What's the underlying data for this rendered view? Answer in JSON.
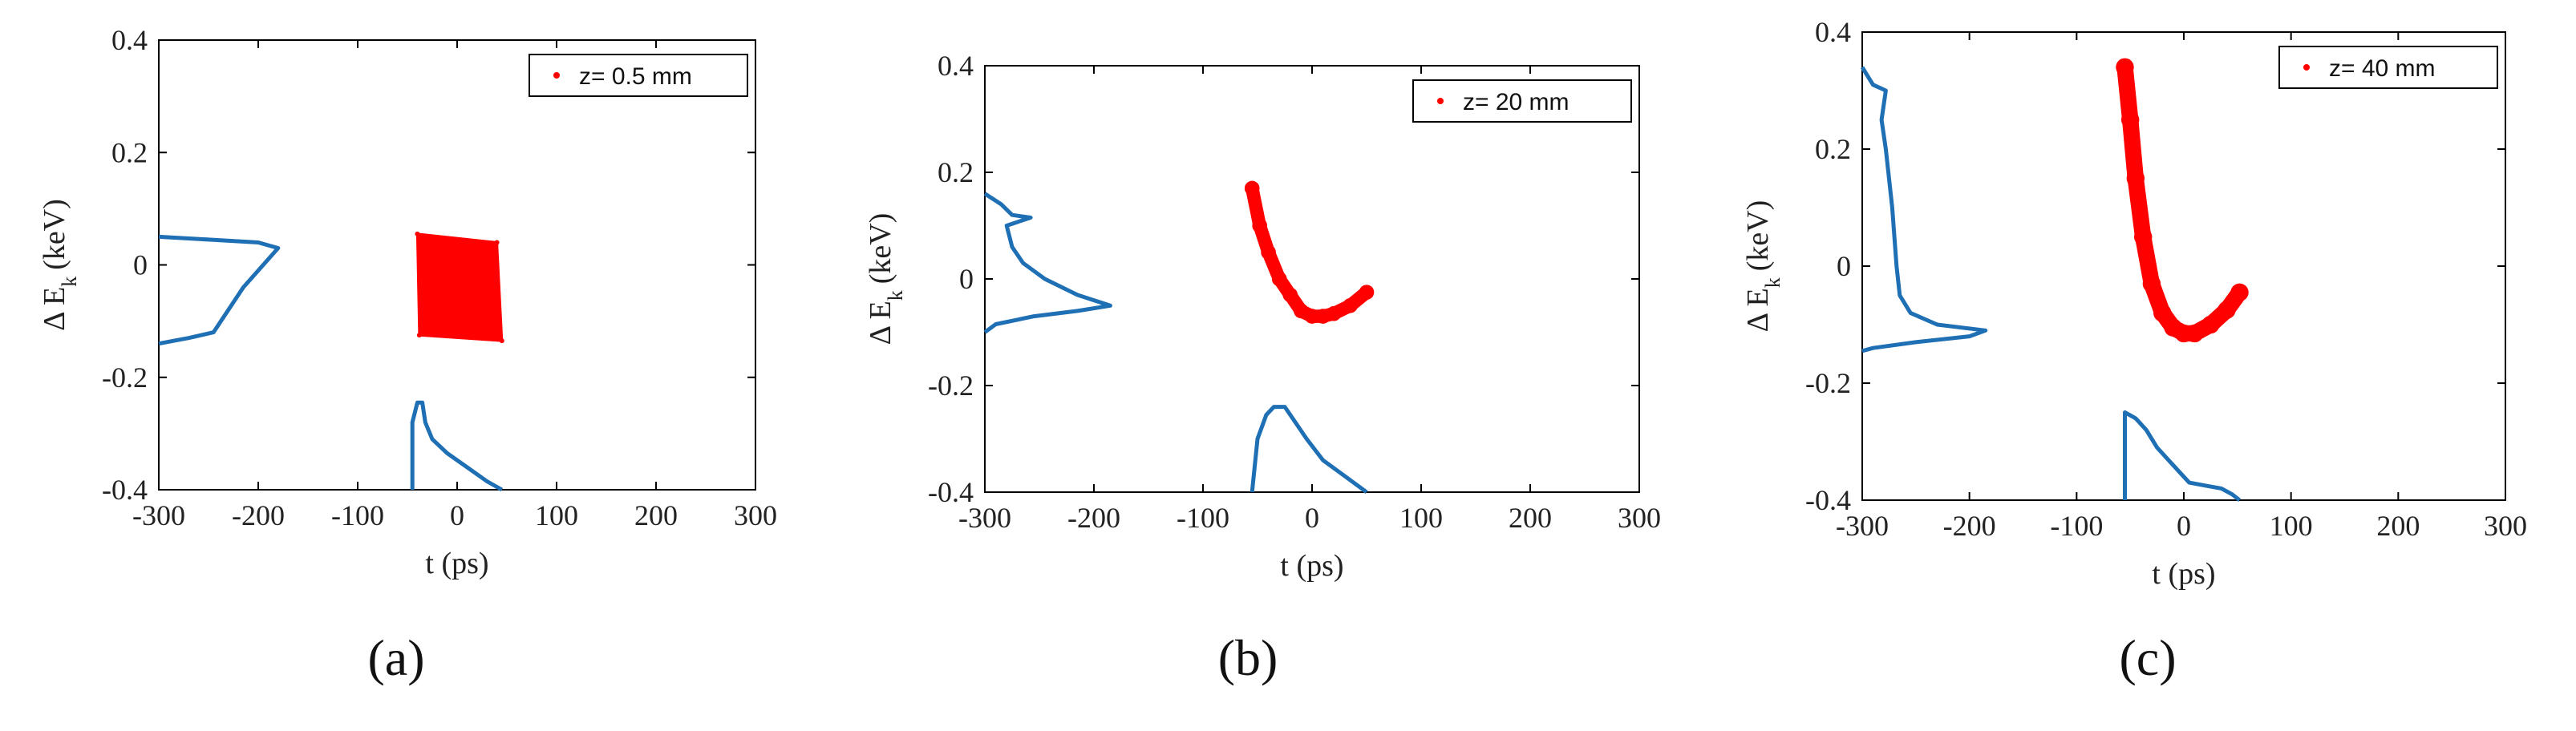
{
  "colors": {
    "scatter": "#ff0000",
    "histogram": "#1f6fb4",
    "axis": "#000000"
  },
  "chart_data": [
    {
      "type": "scatter",
      "caption": "(a)",
      "legend": "z= 0.5 mm",
      "legend_position": "top-right",
      "xlabel": "t (ps)",
      "ylabel_main": "Δ E",
      "ylabel_sub": "k",
      "ylabel_unit": "(keV)",
      "xlim": [
        -300,
        300
      ],
      "ylim": [
        -0.4,
        0.4
      ],
      "xticks": [
        "-300",
        "-200",
        "-100",
        "0",
        "100",
        "200",
        "300"
      ],
      "yticks": [
        "-0.4",
        "-0.2",
        "0",
        "0.2",
        "0.4"
      ],
      "scatter_shape": "block",
      "scatter_polygon": [
        [
          -40,
          0.055
        ],
        [
          40,
          0.04
        ],
        [
          45,
          -0.135
        ],
        [
          -38,
          -0.125
        ]
      ],
      "histogram_t": [
        [
          -45,
          -0.4
        ],
        [
          -45,
          -0.28
        ],
        [
          -40,
          -0.245
        ],
        [
          -35,
          -0.245
        ],
        [
          -32,
          -0.28
        ],
        [
          -25,
          -0.31
        ],
        [
          -10,
          -0.335
        ],
        [
          10,
          -0.36
        ],
        [
          30,
          -0.385
        ],
        [
          45,
          -0.4
        ]
      ],
      "histogram_e": [
        [
          -300,
          0.05
        ],
        [
          -250,
          0.045
        ],
        [
          -200,
          0.04
        ],
        [
          -180,
          0.03
        ],
        [
          -190,
          0.01
        ],
        [
          -215,
          -0.04
        ],
        [
          -245,
          -0.12
        ],
        [
          -270,
          -0.13
        ],
        [
          -300,
          -0.14
        ]
      ]
    },
    {
      "type": "scatter",
      "caption": "(b)",
      "legend": "z= 20 mm",
      "legend_position": "top-right",
      "xlabel": "t (ps)",
      "ylabel_main": "Δ E",
      "ylabel_sub": "k",
      "ylabel_unit": "(keV)",
      "xlim": [
        -300,
        300
      ],
      "ylim": [
        -0.4,
        0.4
      ],
      "xticks": [
        "-300",
        "-200",
        "-100",
        "0",
        "100",
        "200",
        "300"
      ],
      "yticks": [
        "-0.4",
        "-0.2",
        "0",
        "0.2",
        "0.4"
      ],
      "scatter_shape": "band",
      "scatter_curve": [
        [
          -55,
          0.17
        ],
        [
          -48,
          0.1
        ],
        [
          -40,
          0.05
        ],
        [
          -30,
          0.0
        ],
        [
          -20,
          -0.03
        ],
        [
          -10,
          -0.06
        ],
        [
          0,
          -0.07
        ],
        [
          10,
          -0.07
        ],
        [
          20,
          -0.065
        ],
        [
          35,
          -0.05
        ],
        [
          50,
          -0.025
        ]
      ],
      "scatter_spread": 0.025,
      "histogram_t": [
        [
          -55,
          -0.4
        ],
        [
          -50,
          -0.3
        ],
        [
          -42,
          -0.255
        ],
        [
          -35,
          -0.24
        ],
        [
          -25,
          -0.24
        ],
        [
          -15,
          -0.27
        ],
        [
          -5,
          -0.3
        ],
        [
          10,
          -0.34
        ],
        [
          30,
          -0.37
        ],
        [
          50,
          -0.4
        ]
      ],
      "histogram_e": [
        [
          -300,
          0.16
        ],
        [
          -285,
          0.14
        ],
        [
          -275,
          0.12
        ],
        [
          -258,
          0.115
        ],
        [
          -280,
          0.1
        ],
        [
          -275,
          0.06
        ],
        [
          -265,
          0.03
        ],
        [
          -245,
          0.0
        ],
        [
          -215,
          -0.03
        ],
        [
          -185,
          -0.05
        ],
        [
          -215,
          -0.06
        ],
        [
          -255,
          -0.07
        ],
        [
          -290,
          -0.085
        ],
        [
          -300,
          -0.1
        ]
      ]
    },
    {
      "type": "scatter",
      "caption": "(c)",
      "legend": "z= 40 mm",
      "legend_position": "top-right",
      "xlabel": "t (ps)",
      "ylabel_main": "Δ E",
      "ylabel_sub": "k",
      "ylabel_unit": "(keV)",
      "xlim": [
        -300,
        300
      ],
      "ylim": [
        -0.4,
        0.4
      ],
      "xticks": [
        "-300",
        "-200",
        "-100",
        "0",
        "100",
        "200",
        "300"
      ],
      "yticks": [
        "-0.4",
        "-0.2",
        "0",
        "0.2",
        "0.4"
      ],
      "scatter_shape": "band",
      "scatter_curve": [
        [
          -55,
          0.34
        ],
        [
          -50,
          0.25
        ],
        [
          -45,
          0.15
        ],
        [
          -38,
          0.05
        ],
        [
          -30,
          -0.03
        ],
        [
          -20,
          -0.08
        ],
        [
          -10,
          -0.105
        ],
        [
          0,
          -0.115
        ],
        [
          10,
          -0.115
        ],
        [
          25,
          -0.1
        ],
        [
          40,
          -0.075
        ],
        [
          52,
          -0.045
        ]
      ],
      "scatter_spread": 0.028,
      "histogram_t": [
        [
          -55,
          -0.4
        ],
        [
          -55,
          -0.25
        ],
        [
          -45,
          -0.26
        ],
        [
          -35,
          -0.28
        ],
        [
          -25,
          -0.31
        ],
        [
          -15,
          -0.33
        ],
        [
          -5,
          -0.35
        ],
        [
          5,
          -0.37
        ],
        [
          20,
          -0.375
        ],
        [
          35,
          -0.38
        ],
        [
          45,
          -0.39
        ],
        [
          52,
          -0.4
        ]
      ],
      "histogram_e": [
        [
          -300,
          0.34
        ],
        [
          -290,
          0.31
        ],
        [
          -278,
          0.3
        ],
        [
          -282,
          0.25
        ],
        [
          -278,
          0.2
        ],
        [
          -275,
          0.15
        ],
        [
          -272,
          0.1
        ],
        [
          -270,
          0.05
        ],
        [
          -268,
          0.0
        ],
        [
          -265,
          -0.05
        ],
        [
          -255,
          -0.08
        ],
        [
          -230,
          -0.1
        ],
        [
          -185,
          -0.11
        ],
        [
          -200,
          -0.12
        ],
        [
          -250,
          -0.13
        ],
        [
          -290,
          -0.14
        ],
        [
          -300,
          -0.145
        ]
      ]
    }
  ]
}
